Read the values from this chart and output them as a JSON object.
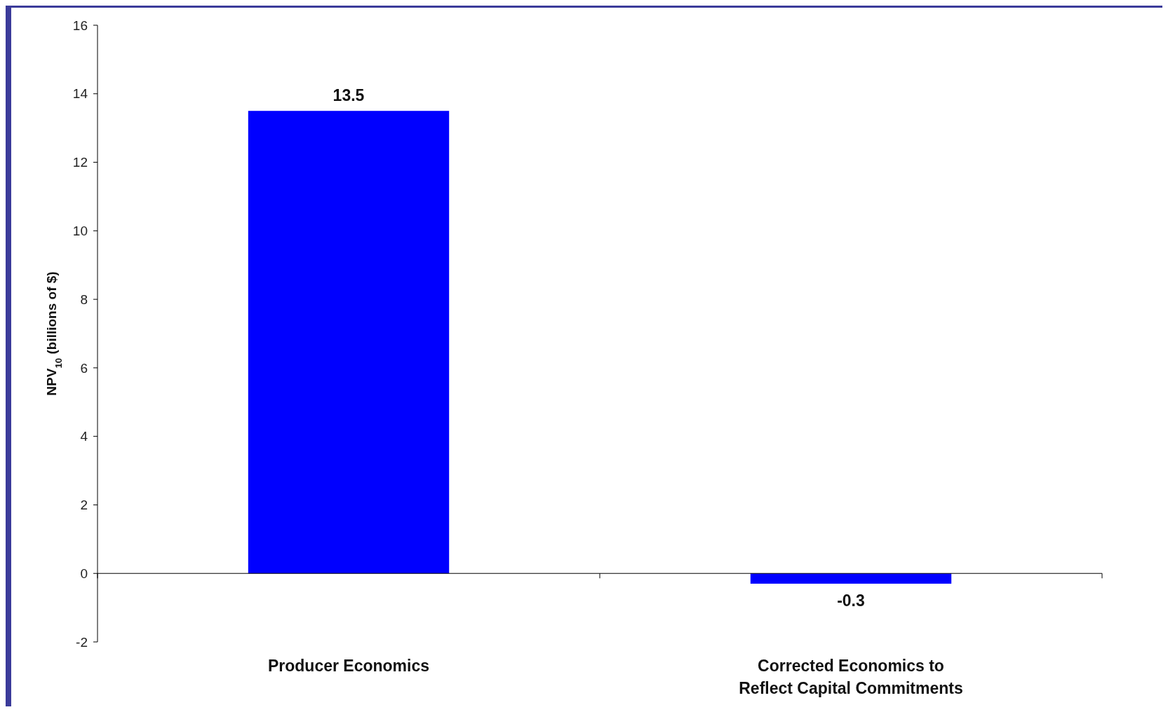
{
  "chart_data": {
    "type": "bar",
    "ylabel": "NPV$_{10}$ (billions of $)",
    "categories": [
      "Producer Economics",
      "Corrected Economics to\nReflect Capital Commitments"
    ],
    "values": [
      13.5,
      -0.3
    ],
    "color": "#0000ff",
    "ylim": [
      -2,
      16
    ],
    "yticks": [
      -2,
      0,
      2,
      4,
      6,
      8,
      10,
      12,
      14,
      16
    ],
    "data_labels": true
  }
}
